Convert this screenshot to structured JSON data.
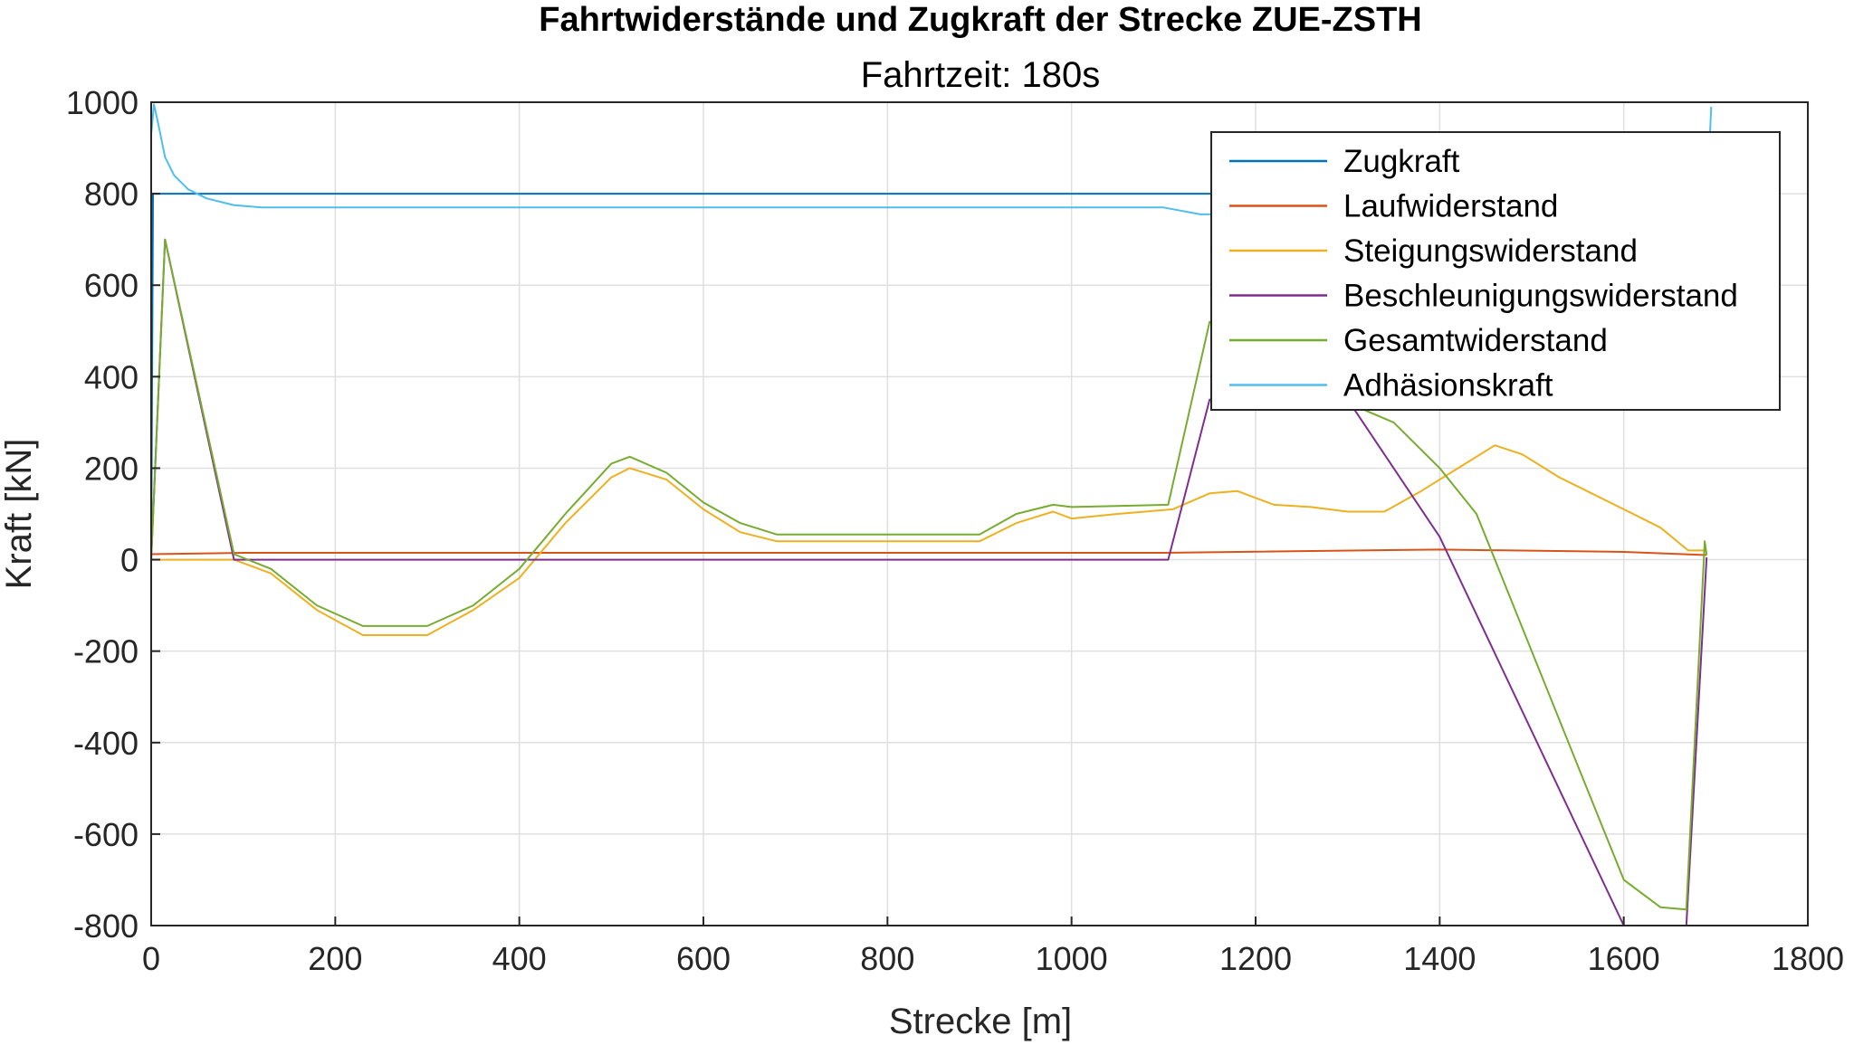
{
  "chart_data": {
    "type": "line",
    "title": "Fahrtwiderstände und Zugkraft der Strecke ZUE-ZSTH",
    "subtitle": "Fahrtzeit: 180s",
    "xlabel": "Strecke [m]",
    "ylabel": "Kraft [kN]",
    "xlim": [
      0,
      1800
    ],
    "ylim": [
      -800,
      1000
    ],
    "xticks": [
      0,
      200,
      400,
      600,
      800,
      1000,
      1200,
      1400,
      1600,
      1800
    ],
    "yticks": [
      -800,
      -600,
      -400,
      -200,
      0,
      200,
      400,
      600,
      800,
      1000
    ],
    "grid": true,
    "legend_position": "top-right",
    "series": [
      {
        "name": "Zugkraft",
        "color": "#0072BD",
        "x": [
          0,
          2,
          1690
        ],
        "y": [
          0,
          800,
          800
        ]
      },
      {
        "name": "Laufwiderstand",
        "color": "#D95319",
        "x": [
          0,
          100,
          1100,
          1400,
          1600,
          1690
        ],
        "y": [
          12,
          15,
          15,
          22,
          17,
          10
        ]
      },
      {
        "name": "Steigungswiderstand",
        "color": "#EDB120",
        "x": [
          0,
          90,
          130,
          180,
          230,
          300,
          350,
          400,
          450,
          500,
          520,
          560,
          600,
          640,
          680,
          800,
          900,
          940,
          980,
          1000,
          1050,
          1110,
          1150,
          1180,
          1220,
          1260,
          1300,
          1340,
          1380,
          1420,
          1460,
          1490,
          1530,
          1560,
          1600,
          1640,
          1670,
          1690
        ],
        "y": [
          0,
          0,
          -30,
          -110,
          -165,
          -165,
          -110,
          -40,
          80,
          180,
          200,
          175,
          110,
          60,
          40,
          40,
          40,
          80,
          105,
          90,
          100,
          110,
          145,
          150,
          120,
          115,
          105,
          105,
          150,
          200,
          250,
          230,
          180,
          150,
          110,
          70,
          20,
          20
        ]
      },
      {
        "name": "Beschleunigungswiderstand",
        "color": "#7E2F8E",
        "x": [
          0,
          15,
          90,
          1105,
          1150,
          1300,
          1400,
          1600,
          1668,
          1690
        ],
        "y": [
          0,
          700,
          0,
          0,
          350,
          350,
          50,
          -800,
          -800,
          5
        ]
      },
      {
        "name": "Gesamtwiderstand",
        "color": "#77AC30",
        "x": [
          0,
          15,
          90,
          130,
          180,
          230,
          300,
          350,
          400,
          450,
          500,
          520,
          560,
          600,
          640,
          680,
          800,
          900,
          940,
          980,
          1000,
          1105,
          1150,
          1180,
          1240,
          1280,
          1350,
          1400,
          1440,
          1500,
          1550,
          1600,
          1640,
          1668,
          1688,
          1690
        ],
        "y": [
          0,
          700,
          12,
          -20,
          -100,
          -145,
          -145,
          -100,
          -20,
          100,
          210,
          225,
          190,
          125,
          80,
          55,
          55,
          55,
          100,
          120,
          115,
          120,
          520,
          500,
          420,
          360,
          300,
          200,
          100,
          -200,
          -450,
          -700,
          -760,
          -765,
          40,
          10
        ]
      },
      {
        "name": "Adhäsionskraft",
        "color": "#4DBEEE",
        "x": [
          0,
          3,
          8,
          15,
          25,
          40,
          60,
          90,
          120,
          300,
          600,
          900,
          1100,
          1140,
          1690,
          1693,
          1695
        ],
        "y": [
          930,
          995,
          950,
          880,
          840,
          810,
          790,
          775,
          770,
          770,
          770,
          770,
          770,
          755,
          760,
          900,
          990
        ]
      }
    ]
  }
}
